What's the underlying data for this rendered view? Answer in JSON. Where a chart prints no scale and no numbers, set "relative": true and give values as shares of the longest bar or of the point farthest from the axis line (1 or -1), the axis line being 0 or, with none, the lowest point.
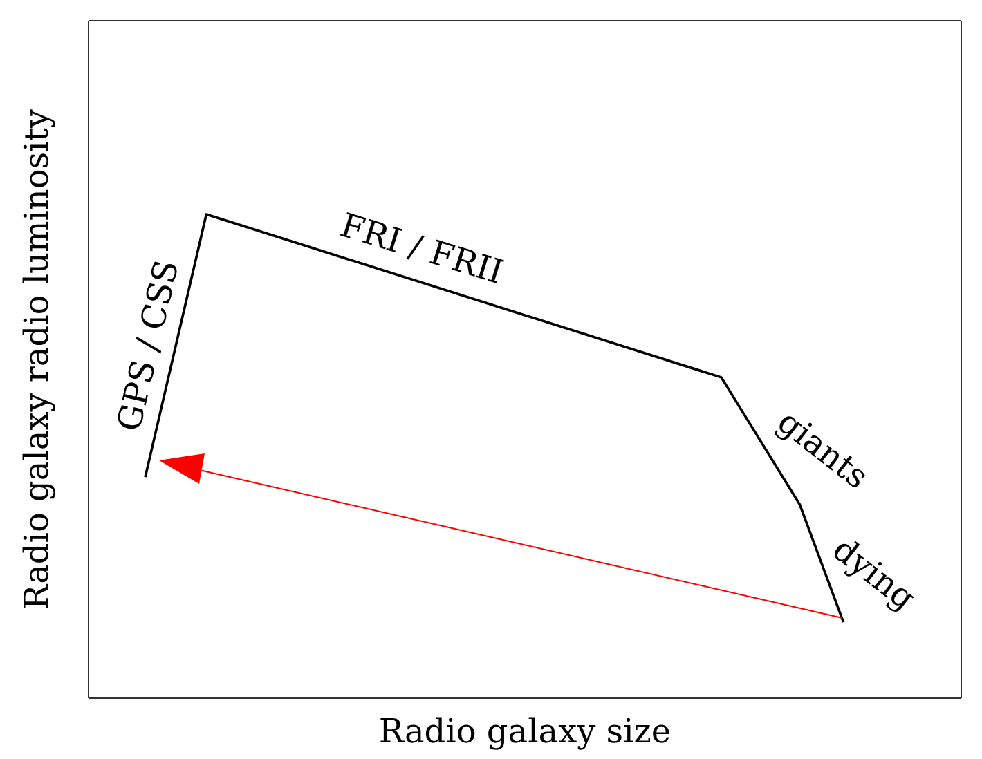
{
  "chart_data": {
    "type": "line",
    "relative": true,
    "xlabel": "Radio galaxy size",
    "ylabel": "Radio galaxy radio luminosity",
    "categories": [
      null,
      null,
      null,
      null,
      null,
      null,
      null,
      null,
      null,
      null,
      null,
      null,
      null,
      null,
      null,
      null,
      null,
      null,
      null,
      null,
      null,
      null,
      null,
      null,
      null,
      null,
      null,
      null,
      null,
      null,
      null,
      null,
      null,
      null,
      null,
      null,
      null,
      null,
      null,
      null,
      null,
      null,
      null,
      null,
      null,
      null,
      null,
      null,
      null,
      null,
      null,
      null,
      null,
      null,
      null,
      null,
      null,
      null,
      null,
      null,
      null,
      null,
      null,
      null,
      null,
      null,
      null,
      null,
      null,
      null,
      null,
      null,
      null,
      null,
      null,
      null,
      null,
      null,
      null,
      null,
      null,
      null,
      null,
      null,
      null,
      null,
      null,
      null,
      null,
      null,
      null,
      null,
      null,
      null,
      null,
      null,
      null,
      null,
      null,
      null
    ],
    "tick_labels": false,
    "marker": "none",
    "line_style": "solid",
    "series": [
      {
        "color": "#000000",
        "values": [
          null,
          null,
          null,
          null,
          null,
          null,
          0.457,
          null,
          null,
          null,
          null,
          null,
          null,
          1,
          null,
          null,
          null,
          null,
          null,
          null,
          null,
          null,
          null,
          null,
          null,
          null,
          null,
          null,
          null,
          null,
          null,
          null,
          null,
          null,
          null,
          null,
          null,
          null,
          null,
          null,
          null,
          null,
          null,
          null,
          null,
          null,
          null,
          null,
          null,
          null,
          null,
          null,
          null,
          null,
          null,
          null,
          null,
          null,
          null,
          null,
          null,
          null,
          null,
          null,
          null,
          null,
          null,
          null,
          null,
          null,
          null,
          null,
          0.663,
          null,
          null,
          null,
          null,
          null,
          null,
          null,
          null,
          0.4,
          null,
          null,
          null,
          null,
          0.157,
          null,
          null,
          null,
          null,
          null,
          null,
          null,
          null,
          null,
          null,
          null,
          null,
          null
        ]
      }
    ],
    "annotations": [
      "GPS / CSS",
      "FRI / FRII",
      "giants",
      "dying"
    ]
  }
}
